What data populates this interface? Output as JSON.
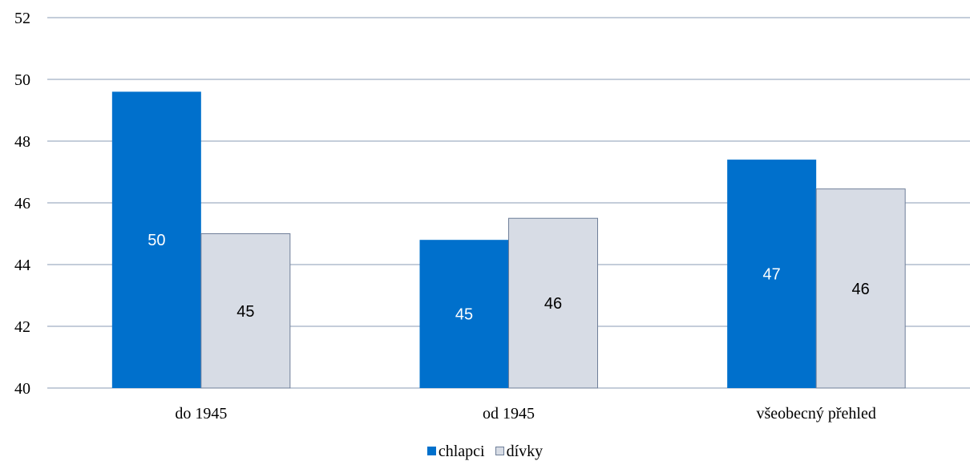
{
  "chart_data": {
    "type": "bar",
    "categories": [
      "do 1945",
      "od 1945",
      "všeobecný přehled"
    ],
    "series": [
      {
        "name": "chlapci",
        "values": [
          49.6,
          44.8,
          47.4
        ],
        "labels": [
          "50",
          "45",
          "47"
        ],
        "color": "#0070CC",
        "label_color": "#ffffff"
      },
      {
        "name": "dívky",
        "values": [
          45.0,
          45.5,
          46.45
        ],
        "labels": [
          "45",
          "46",
          "46"
        ],
        "color": "#D7DCE5",
        "label_color": "#000000"
      }
    ],
    "ylim": [
      40,
      52
    ],
    "yticks": [
      40,
      42,
      44,
      46,
      48,
      50,
      52
    ],
    "grid": true,
    "gridline_color": "#8A9BB5",
    "legend_placement": "bottom-center"
  }
}
